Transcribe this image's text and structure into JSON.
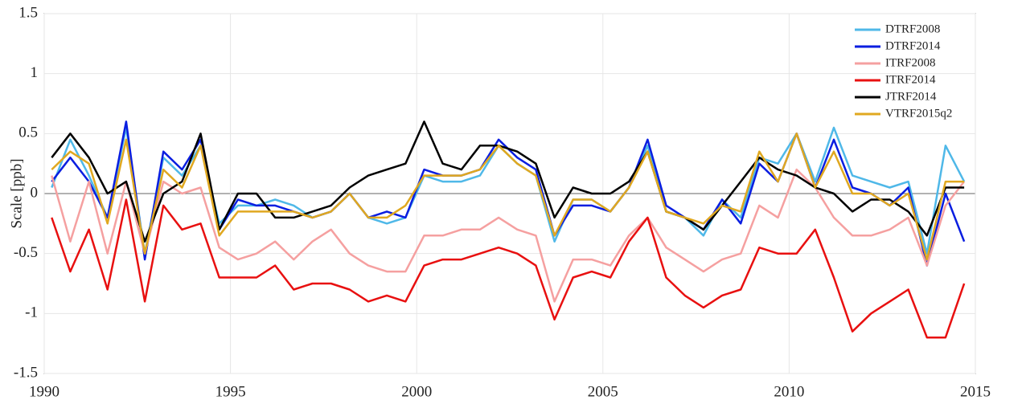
{
  "chart_data": {
    "type": "line",
    "ylabel": "Scale [ppb]",
    "x": [
      1990.2,
      1990.7,
      1991.2,
      1991.7,
      1992.2,
      1992.7,
      1993.2,
      1993.7,
      1994.2,
      1994.7,
      1995.2,
      1995.7,
      1996.2,
      1996.7,
      1997.2,
      1997.7,
      1998.2,
      1998.7,
      1999.2,
      1999.7,
      2000.2,
      2000.7,
      2001.2,
      2001.7,
      2002.2,
      2002.7,
      2003.2,
      2003.7,
      2004.2,
      2004.7,
      2005.2,
      2005.7,
      2006.2,
      2006.7,
      2007.2,
      2007.7,
      2008.2,
      2008.7,
      2009.2,
      2009.7,
      2010.2,
      2010.7,
      2011.2,
      2011.7,
      2012.2,
      2012.7,
      2013.2,
      2013.7,
      2014.2,
      2014.7
    ],
    "series": [
      {
        "name": "DTRF2008",
        "color": "#4fb8e8",
        "values": [
          0.05,
          0.45,
          0.15,
          -0.2,
          0.55,
          -0.5,
          0.3,
          0.15,
          0.4,
          -0.25,
          -0.1,
          -0.1,
          -0.05,
          -0.1,
          -0.2,
          -0.15,
          0.0,
          -0.2,
          -0.25,
          -0.2,
          0.15,
          0.1,
          0.1,
          0.15,
          0.4,
          0.25,
          0.15,
          -0.4,
          -0.05,
          -0.05,
          -0.15,
          0.05,
          0.4,
          -0.15,
          -0.2,
          -0.35,
          -0.05,
          -0.2,
          0.3,
          0.25,
          0.5,
          0.1,
          0.55,
          0.15,
          0.1,
          0.05,
          0.1,
          -0.5,
          0.4,
          0.1
        ]
      },
      {
        "name": "DTRF2014",
        "color": "#0a1ee0",
        "values": [
          0.1,
          0.3,
          0.1,
          -0.2,
          0.6,
          -0.55,
          0.35,
          0.2,
          0.45,
          -0.3,
          -0.05,
          -0.1,
          -0.1,
          -0.15,
          -0.2,
          -0.15,
          0.0,
          -0.2,
          -0.15,
          -0.2,
          0.2,
          0.15,
          0.15,
          0.2,
          0.45,
          0.3,
          0.2,
          -0.35,
          -0.1,
          -0.1,
          -0.15,
          0.05,
          0.45,
          -0.1,
          -0.2,
          -0.3,
          -0.05,
          -0.25,
          0.25,
          0.1,
          0.5,
          0.05,
          0.45,
          0.05,
          0.0,
          -0.1,
          0.05,
          -0.6,
          0.0,
          -0.4
        ]
      },
      {
        "name": "ITRF2008",
        "color": "#f5a0a0",
        "values": [
          0.15,
          -0.4,
          0.1,
          -0.5,
          0.1,
          -0.5,
          0.1,
          0.0,
          0.05,
          -0.45,
          -0.55,
          -0.5,
          -0.4,
          -0.55,
          -0.4,
          -0.3,
          -0.5,
          -0.6,
          -0.65,
          -0.65,
          -0.35,
          -0.35,
          -0.3,
          -0.3,
          -0.2,
          -0.3,
          -0.35,
          -0.9,
          -0.55,
          -0.55,
          -0.6,
          -0.35,
          -0.2,
          -0.45,
          -0.55,
          -0.65,
          -0.55,
          -0.5,
          -0.1,
          -0.2,
          0.2,
          0.05,
          -0.2,
          -0.35,
          -0.35,
          -0.3,
          -0.2,
          -0.6,
          -0.1,
          0.1
        ]
      },
      {
        "name": "ITRF2014",
        "color": "#e81010",
        "values": [
          -0.2,
          -0.65,
          -0.3,
          -0.8,
          -0.05,
          -0.9,
          -0.1,
          -0.3,
          -0.25,
          -0.7,
          -0.7,
          -0.7,
          -0.6,
          -0.8,
          -0.75,
          -0.75,
          -0.8,
          -0.9,
          -0.85,
          -0.9,
          -0.6,
          -0.55,
          -0.55,
          -0.5,
          -0.45,
          -0.5,
          -0.6,
          -1.05,
          -0.7,
          -0.65,
          -0.7,
          -0.4,
          -0.2,
          -0.7,
          -0.85,
          -0.95,
          -0.85,
          -0.8,
          -0.45,
          -0.5,
          -0.5,
          -0.3,
          -0.7,
          -1.15,
          -1.0,
          -0.9,
          -0.8,
          -1.2,
          -1.2,
          -0.75
        ]
      },
      {
        "name": "JTRF2014",
        "color": "#000000",
        "values": [
          0.3,
          0.5,
          0.3,
          0.0,
          0.1,
          -0.4,
          0.0,
          0.1,
          0.5,
          -0.3,
          0.0,
          0.0,
          -0.2,
          -0.2,
          -0.15,
          -0.1,
          0.05,
          0.15,
          0.2,
          0.25,
          0.6,
          0.25,
          0.2,
          0.4,
          0.4,
          0.35,
          0.25,
          -0.2,
          0.05,
          0.0,
          0.0,
          0.1,
          0.35,
          -0.15,
          -0.2,
          -0.3,
          -0.1,
          0.1,
          0.3,
          0.2,
          0.15,
          0.05,
          0.0,
          -0.15,
          -0.05,
          -0.05,
          -0.15,
          -0.35,
          0.05,
          0.05
        ]
      },
      {
        "name": "VTRF2015q2",
        "color": "#e0a820",
        "values": [
          0.2,
          0.35,
          0.25,
          -0.25,
          0.45,
          -0.5,
          0.2,
          0.05,
          0.4,
          -0.35,
          -0.15,
          -0.15,
          -0.15,
          -0.15,
          -0.2,
          -0.15,
          0.0,
          -0.2,
          -0.2,
          -0.1,
          0.15,
          0.15,
          0.15,
          0.2,
          0.4,
          0.25,
          0.15,
          -0.35,
          -0.05,
          -0.05,
          -0.15,
          0.05,
          0.35,
          -0.15,
          -0.2,
          -0.25,
          -0.1,
          -0.15,
          0.35,
          0.1,
          0.5,
          0.05,
          0.35,
          0.0,
          0.0,
          -0.1,
          0.0,
          -0.55,
          0.1,
          0.1
        ]
      }
    ],
    "xlim": [
      1990,
      2015
    ],
    "xticks": [
      1990,
      1995,
      2000,
      2005,
      2010,
      2015
    ],
    "ylim": [
      -1.5,
      1.5
    ],
    "yticks": [
      -1.5,
      -1,
      -0.5,
      0,
      0.5,
      1,
      1.5
    ],
    "grid": true,
    "legend": "upper right"
  }
}
